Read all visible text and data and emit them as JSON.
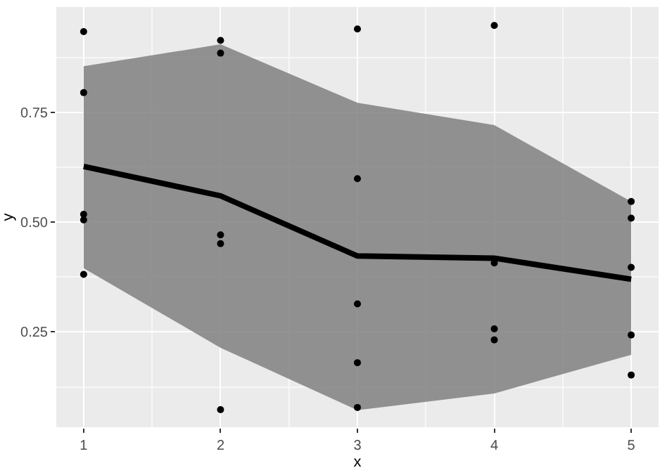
{
  "chart_data": {
    "type": "scatter",
    "xlabel": "x",
    "ylabel": "y",
    "xlim": [
      0.8,
      5.2
    ],
    "ylim": [
      0.033,
      0.99
    ],
    "xticks": [
      1,
      2,
      3,
      4,
      5
    ],
    "yticks": [
      {
        "value": 0.25,
        "label": "0.25"
      },
      {
        "value": 0.5,
        "label": "0.50"
      },
      {
        "value": 0.75,
        "label": "0.75"
      }
    ],
    "grid": true,
    "series": [
      {
        "type": "line",
        "color": "#000000",
        "x": [
          1,
          2,
          3,
          4,
          5
        ],
        "values": [
          0.627,
          0.56,
          0.423,
          0.418,
          0.37
        ],
        "lower": [
          0.395,
          0.214,
          0.072,
          0.11,
          0.198
        ],
        "upper": [
          0.855,
          0.905,
          0.772,
          0.721,
          0.547
        ]
      },
      {
        "marker": "circle",
        "color": "#000000",
        "x": [
          1,
          1,
          1,
          1,
          1,
          2,
          2,
          2,
          2,
          2,
          3,
          3,
          3,
          3,
          3,
          4,
          4,
          4,
          4,
          5,
          5,
          5,
          5,
          5
        ],
        "values": [
          0.934,
          0.795,
          0.518,
          0.505,
          0.381,
          0.914,
          0.885,
          0.471,
          0.451,
          0.073,
          0.94,
          0.599,
          0.314,
          0.18,
          0.078,
          0.948,
          0.407,
          0.257,
          0.232,
          0.547,
          0.509,
          0.397,
          0.243,
          0.152
        ]
      }
    ]
  }
}
